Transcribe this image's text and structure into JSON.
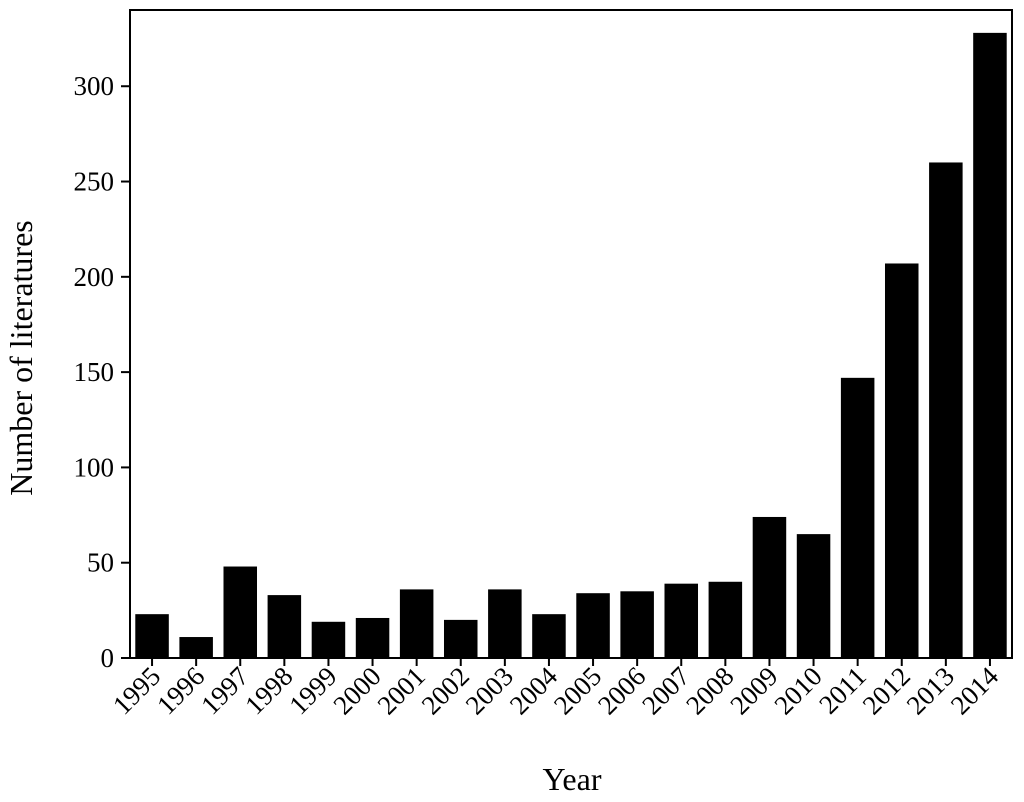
{
  "chart_data": {
    "type": "bar",
    "x_label": "Year",
    "y_label": "Number of literatures",
    "categories": [
      "1995",
      "1996",
      "1997",
      "1998",
      "1999",
      "2000",
      "2001",
      "2002",
      "2003",
      "2004",
      "2005",
      "2006",
      "2007",
      "2008",
      "2009",
      "2010",
      "2011",
      "2012",
      "2013",
      "2014"
    ],
    "values": [
      23,
      11,
      48,
      33,
      19,
      21,
      36,
      20,
      36,
      23,
      34,
      35,
      39,
      40,
      74,
      65,
      147,
      207,
      260,
      328
    ],
    "color": "#000000",
    "ylim": [
      0,
      340
    ],
    "yticks": [
      0,
      50,
      100,
      150,
      200,
      250,
      300
    ],
    "grid": false
  }
}
